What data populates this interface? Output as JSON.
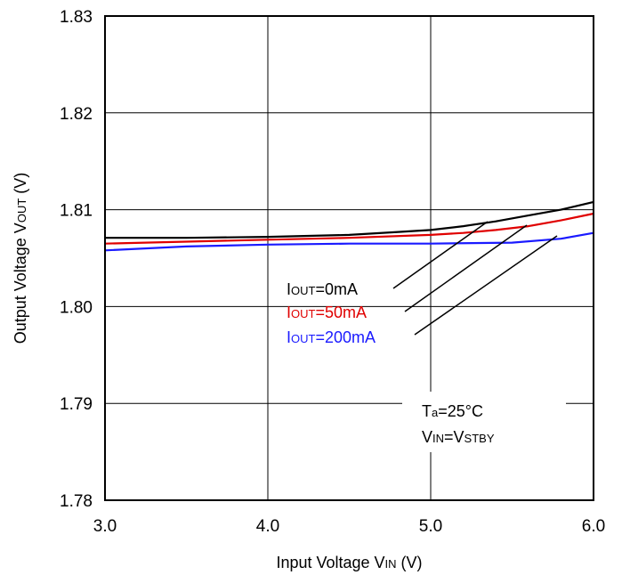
{
  "chart_data": {
    "type": "line",
    "xlabel": {
      "main": "Input Voltage V",
      "sub": "IN",
      "unit": " (V)"
    },
    "ylabel": {
      "main": "Output Voltage V",
      "sub": "OUT",
      "unit": " (V)"
    },
    "xlim": [
      3.0,
      6.0
    ],
    "ylim": [
      1.78,
      1.83
    ],
    "x_ticks": [
      "3.0",
      "4.0",
      "5.0",
      "6.0"
    ],
    "y_ticks": [
      "1.78",
      "1.79",
      "1.80",
      "1.81",
      "1.82",
      "1.83"
    ],
    "grid": true,
    "series": [
      {
        "name": "IOUT=0mA",
        "color": "#000000",
        "x": [
          3.0,
          3.5,
          4.0,
          4.5,
          4.8,
          5.0,
          5.2,
          5.4,
          5.6,
          5.8,
          6.0
        ],
        "y": [
          1.8071,
          1.8071,
          1.8072,
          1.8074,
          1.8077,
          1.8079,
          1.8083,
          1.8088,
          1.8094,
          1.81,
          1.8108
        ]
      },
      {
        "name": "IOUT=50mA",
        "color": "#e00000",
        "x": [
          3.0,
          3.5,
          4.0,
          4.5,
          5.0,
          5.2,
          5.4,
          5.6,
          5.8,
          6.0
        ],
        "y": [
          1.8065,
          1.8067,
          1.8069,
          1.8071,
          1.8074,
          1.8076,
          1.8079,
          1.8083,
          1.8089,
          1.8096
        ]
      },
      {
        "name": "IOUT=200mA",
        "color": "#1a1aff",
        "x": [
          3.0,
          3.5,
          4.0,
          4.5,
          5.0,
          5.5,
          5.8,
          6.0
        ],
        "y": [
          1.8058,
          1.8062,
          1.8064,
          1.8065,
          1.8065,
          1.8066,
          1.807,
          1.8076
        ]
      }
    ],
    "series_labels": [
      {
        "main": "I",
        "sub": "OUT",
        "rest": "=0mA",
        "color": "#000000"
      },
      {
        "main": "I",
        "sub": "OUT",
        "rest": "=50mA",
        "color": "#e00000"
      },
      {
        "main": "I",
        "sub": "OUT",
        "rest": "=200mA",
        "color": "#1a1aff"
      }
    ],
    "annotations": [
      {
        "main": "T",
        "sub": "a",
        "rest": "=25°C"
      },
      {
        "main": "V",
        "sub": "IN",
        "rest": "=V",
        "sub2": "STBY"
      }
    ]
  }
}
